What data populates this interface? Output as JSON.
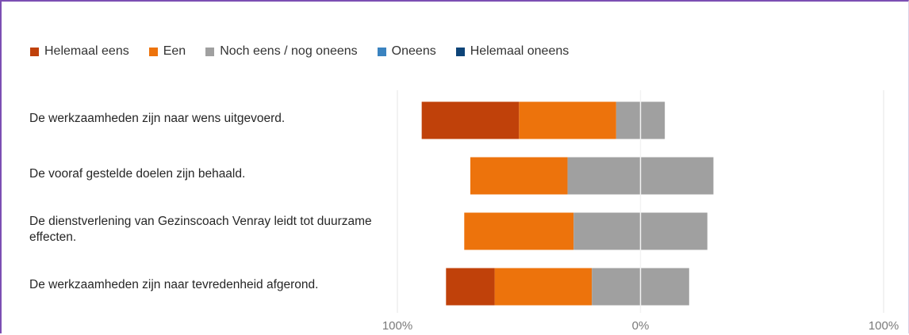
{
  "chart_data": {
    "type": "bar",
    "orientation": "horizontal",
    "stacking": "diverging",
    "legend_position": "top-left",
    "grid": true,
    "xlim": [
      -100,
      100
    ],
    "ticks": [
      {
        "value": -100,
        "label": "100%"
      },
      {
        "value": 0,
        "label": "0%"
      },
      {
        "value": 100,
        "label": "100%"
      }
    ],
    "categories": [
      "De werkzaamheden zijn naar wens uitgevoerd.",
      "De vooraf gestelde doelen zijn behaald.",
      "De dienstverlening van Gezinscoach Venray leidt tot duurzame effecten.",
      "De werkzaamheden zijn naar tevredenheid afgerond."
    ],
    "series": [
      {
        "name": "Helemaal eens",
        "color": "#c0410a",
        "side": "positive-agree",
        "values": [
          40,
          0,
          0,
          20
        ]
      },
      {
        "name": "Een",
        "color": "#ed730c",
        "side": "positive-agree",
        "values": [
          40,
          40,
          45,
          40
        ]
      },
      {
        "name": "Noch eens / nog oneens",
        "color": "#a0a0a0",
        "side": "neutral",
        "values": [
          20,
          60,
          55,
          40
        ]
      },
      {
        "name": "Oneens",
        "color": "#3a83c0",
        "side": "negative-disagree",
        "values": [
          0,
          0,
          0,
          0
        ]
      },
      {
        "name": "Helemaal oneens",
        "color": "#0d4478",
        "side": "negative-disagree",
        "values": [
          0,
          0,
          0,
          0
        ]
      }
    ]
  }
}
